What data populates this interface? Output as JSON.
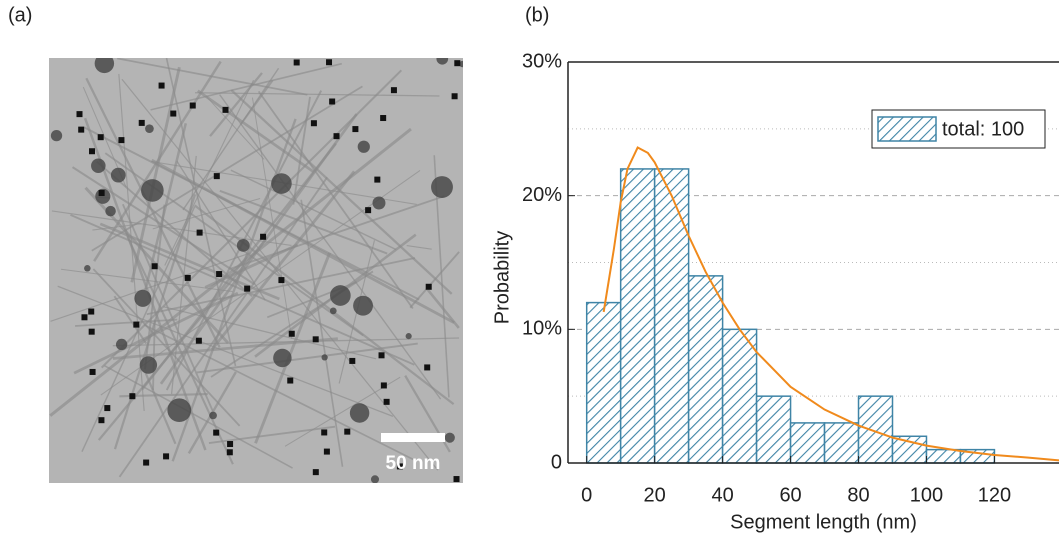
{
  "panels": {
    "a": {
      "label": "(a)",
      "scale_bar": "50 nm"
    },
    "b": {
      "label": "(b)"
    }
  },
  "chart_data": {
    "type": "histogram",
    "bins": [
      0,
      10,
      20,
      30,
      40,
      50,
      60,
      70,
      80,
      90,
      100,
      110,
      120
    ],
    "values": [
      12,
      22,
      22,
      14,
      10,
      5,
      3,
      3,
      5,
      2,
      1,
      1
    ],
    "color": "#3f84a6",
    "legend": "total: 100",
    "legend_position": "upper right",
    "x_label": "Segment length (nm)",
    "y_label": "Probability",
    "xlim": [
      -5.5,
      139
    ],
    "xticks": [
      0,
      20,
      40,
      60,
      80,
      100,
      120
    ],
    "ylim": [
      0,
      30
    ],
    "yticks": [
      0,
      {
        "value": 10,
        "label": "10%"
      },
      {
        "value": 20,
        "label": "20%"
      },
      {
        "value": 30,
        "label": "30%"
      }
    ],
    "minor_yticks": [
      5,
      15,
      25
    ],
    "grid": true,
    "fit": {
      "color": "#f08a1c",
      "x": [
        5,
        8,
        10,
        12,
        15,
        18,
        20,
        25,
        30,
        35,
        40,
        45,
        50,
        60,
        70,
        80,
        90,
        100,
        110,
        120,
        130,
        139
      ],
      "values": [
        11.3,
        16,
        19.5,
        22,
        23.6,
        23.2,
        22.5,
        20,
        17,
        14.3,
        12,
        10,
        8.3,
        5.7,
        4,
        2.8,
        1.9,
        1.3,
        0.9,
        0.6,
        0.4,
        0.2
      ]
    }
  }
}
